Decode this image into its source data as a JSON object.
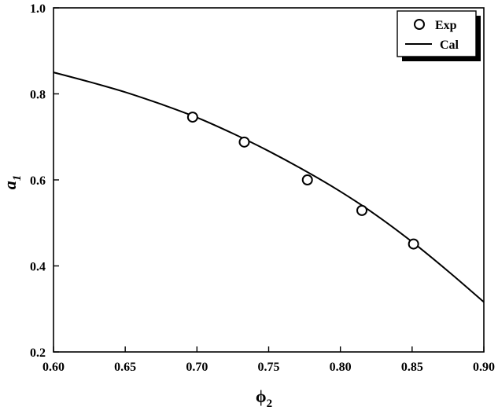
{
  "chart_data": {
    "type": "scatter",
    "xlim": [
      0.6,
      0.9
    ],
    "ylim": [
      0.2,
      1.0
    ],
    "xticks": [
      0.6,
      0.65,
      0.7,
      0.75,
      0.8,
      0.85,
      0.9
    ],
    "yticks": [
      0.2,
      0.4,
      0.6,
      0.8,
      1.0
    ],
    "xtick_labels": [
      "0.60",
      "0.65",
      "0.70",
      "0.75",
      "0.80",
      "0.85",
      "0.90"
    ],
    "ytick_labels": [
      "0.2",
      "0.4",
      "0.6",
      "0.8",
      "1.0"
    ],
    "xlabel": {
      "base": "ϕ",
      "subscript": "2"
    },
    "ylabel": {
      "base": "a",
      "subscript": "1"
    },
    "grid": false,
    "legend_placement": "top-right",
    "series": [
      {
        "name": "Exp",
        "kind": "scatter",
        "marker": "open-circle",
        "x": [
          0.697,
          0.733,
          0.777,
          0.815,
          0.851
        ],
        "y": [
          0.746,
          0.688,
          0.6,
          0.529,
          0.451
        ]
      },
      {
        "name": "Cal",
        "kind": "line",
        "x": [
          0.6,
          0.625,
          0.65,
          0.675,
          0.7,
          0.725,
          0.75,
          0.775,
          0.8,
          0.825,
          0.85,
          0.875,
          0.9
        ],
        "y": [
          0.85,
          0.828,
          0.804,
          0.776,
          0.745,
          0.708,
          0.667,
          0.622,
          0.573,
          0.518,
          0.456,
          0.388,
          0.316
        ]
      }
    ]
  }
}
